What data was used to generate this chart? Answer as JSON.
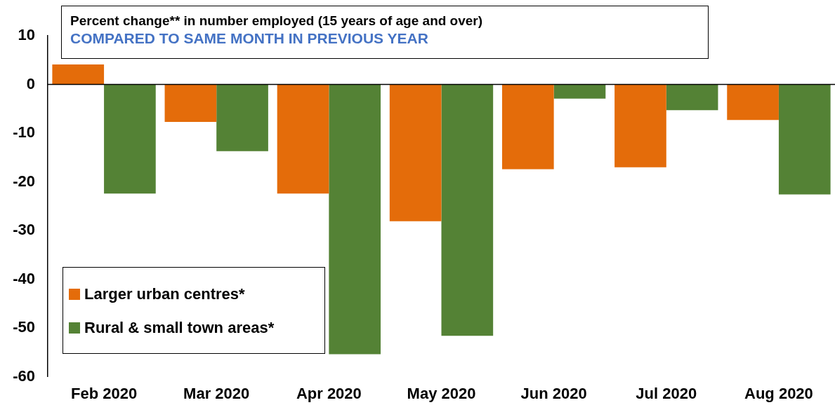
{
  "chart_data": {
    "type": "bar",
    "title": "Percent change** in number employed (15 years of age and over)",
    "subtitle": "COMPARED TO SAME MONTH IN PREVIOUS YEAR",
    "categories": [
      "Feb 2020",
      "Mar 2020",
      "Apr 2020",
      "May 2020",
      "Jun 2020",
      "Jul 2020",
      "Aug 2020"
    ],
    "series": [
      {
        "name": "Larger urban centres*",
        "color": "#e46c0a",
        "values": [
          4.1,
          -7.7,
          -22.4,
          -28.1,
          -17.4,
          -17.0,
          -7.3
        ]
      },
      {
        "name": "Rural & small town areas*",
        "color": "#548235",
        "values": [
          -22.4,
          -13.7,
          -55.4,
          -51.6,
          -2.9,
          -5.3,
          -22.6
        ]
      }
    ],
    "ylim": [
      -60,
      10
    ],
    "yticks": [
      -60,
      -50,
      -40,
      -30,
      -20,
      -10,
      0,
      10
    ],
    "grid": false,
    "ref_lines": [
      {
        "axis": "y",
        "value": 0,
        "color": "#000000"
      }
    ],
    "legend": "bottom left"
  }
}
